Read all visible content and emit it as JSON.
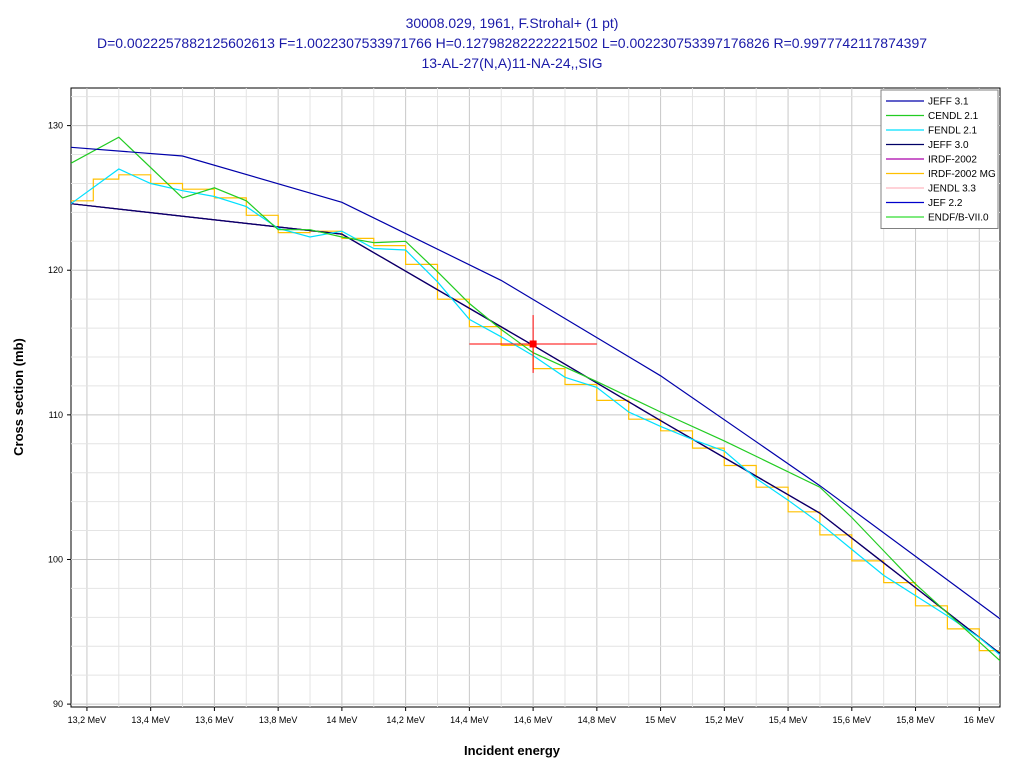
{
  "chart_data": {
    "type": "line",
    "title_lines": [
      "30008.029, 1961, F.Strohal+ (1 pt)",
      "D=0.0022257882125602613 F=1.0022307533971766 H=0.12798282222221502 L=0.002230753397176826 R=0.9977742117874397",
      "13-AL-27(N,A)11-NA-24,,SIG"
    ],
    "xlabel": "Incident energy",
    "ylabel": "Cross section (mb)",
    "xlim": [
      13.15,
      16.065
    ],
    "ylim": [
      89.8,
      132.6
    ],
    "x_ticks": [
      {
        "value": 13.2,
        "label": "13,2 MeV"
      },
      {
        "value": 13.4,
        "label": "13,4 MeV"
      },
      {
        "value": 13.6,
        "label": "13,6 MeV"
      },
      {
        "value": 13.8,
        "label": "13,8 MeV"
      },
      {
        "value": 14.0,
        "label": "14 MeV"
      },
      {
        "value": 14.2,
        "label": "14,2 MeV"
      },
      {
        "value": 14.4,
        "label": "14,4 MeV"
      },
      {
        "value": 14.6,
        "label": "14,6 MeV"
      },
      {
        "value": 14.8,
        "label": "14,8 MeV"
      },
      {
        "value": 15.0,
        "label": "15 MeV"
      },
      {
        "value": 15.2,
        "label": "15,2 MeV"
      },
      {
        "value": 15.4,
        "label": "15,4 MeV"
      },
      {
        "value": 15.6,
        "label": "15,6 MeV"
      },
      {
        "value": 15.8,
        "label": "15,8 MeV"
      },
      {
        "value": 16.0,
        "label": "16 MeV"
      }
    ],
    "y_ticks": [
      {
        "value": 90,
        "label": "90"
      },
      {
        "value": 100,
        "label": "100"
      },
      {
        "value": 110,
        "label": "110"
      },
      {
        "value": 120,
        "label": "120"
      },
      {
        "value": 130,
        "label": "130"
      }
    ],
    "grid": true,
    "legend_position": "top-right",
    "series": [
      {
        "name": "JEFF 3.1",
        "color": "#0000aa",
        "style": "line",
        "x": [
          13.15,
          13.5,
          14.0,
          14.5,
          15.0,
          15.5,
          16.065
        ],
        "y": [
          128.5,
          127.9,
          124.7,
          119.3,
          112.7,
          105.1,
          95.9
        ]
      },
      {
        "name": "CENDL 2.1",
        "color": "#22cc22",
        "style": "line",
        "x": [
          13.15,
          13.3,
          13.5,
          13.6,
          13.7,
          13.8,
          13.9,
          14.0,
          14.1,
          14.2,
          14.3,
          14.4,
          14.5,
          14.6,
          14.8,
          15.0,
          15.2,
          15.5,
          15.6,
          15.8,
          16.065
        ],
        "y": [
          127.4,
          129.2,
          125.0,
          125.7,
          124.8,
          122.8,
          122.8,
          122.3,
          121.9,
          122.0,
          119.9,
          117.7,
          115.9,
          114.3,
          112.3,
          110.2,
          108.2,
          105.0,
          102.9,
          98.3,
          93.0
        ]
      },
      {
        "name": "FENDL 2.1",
        "color": "#00e0ff",
        "style": "line",
        "x": [
          13.15,
          13.3,
          13.4,
          13.5,
          13.6,
          13.7,
          13.8,
          13.9,
          14.0,
          14.1,
          14.2,
          14.3,
          14.4,
          14.5,
          14.6,
          14.7,
          14.8,
          14.9,
          15.0,
          15.1,
          15.2,
          15.3,
          15.4,
          15.5,
          15.6,
          15.7,
          15.8,
          15.9,
          16.0,
          16.065
        ],
        "y": [
          124.6,
          127.0,
          126.0,
          125.5,
          125.1,
          124.4,
          122.9,
          122.3,
          122.7,
          121.5,
          121.4,
          119.2,
          116.6,
          115.4,
          114.1,
          112.6,
          111.9,
          110.2,
          109.2,
          108.3,
          107.5,
          105.6,
          104.1,
          102.5,
          100.7,
          98.9,
          97.5,
          96.1,
          94.6,
          93.4
        ]
      },
      {
        "name": "JEFF 3.0",
        "color": "#000066",
        "style": "line",
        "x": [
          13.15,
          14.0,
          14.6,
          15.0,
          15.5,
          16.065
        ],
        "y": [
          124.6,
          122.5,
          114.8,
          109.6,
          103.2,
          93.5
        ]
      },
      {
        "name": "IRDF-2002",
        "color": "#aa00aa",
        "style": "line",
        "x": [
          13.15,
          14.0,
          14.6,
          15.0,
          15.5,
          16.065
        ],
        "y": [
          124.6,
          122.5,
          114.8,
          109.6,
          103.2,
          93.5
        ]
      },
      {
        "name": "IRDF-2002 MG",
        "color": "#ffc000",
        "style": "step",
        "edges": [
          13.15,
          13.22,
          13.3,
          13.4,
          13.5,
          13.6,
          13.7,
          13.8,
          13.9,
          14.0,
          14.1,
          14.2,
          14.3,
          14.4,
          14.5,
          14.6,
          14.7,
          14.8,
          14.9,
          15.0,
          15.1,
          15.2,
          15.3,
          15.4,
          15.5,
          15.6,
          15.7,
          15.8,
          15.9,
          16.0,
          16.065
        ],
        "values": [
          124.8,
          126.3,
          126.6,
          126.0,
          125.6,
          125.0,
          123.8,
          122.6,
          122.7,
          122.2,
          121.7,
          120.4,
          118.0,
          116.1,
          114.8,
          113.2,
          112.1,
          111.0,
          109.7,
          108.9,
          107.7,
          106.5,
          105.0,
          103.3,
          101.7,
          99.9,
          98.4,
          96.8,
          95.2,
          93.7
        ]
      },
      {
        "name": "JENDL 3.3",
        "color": "#ffb6c1",
        "style": "line",
        "x": [
          13.15,
          14.0,
          14.6,
          15.0,
          15.5,
          16.065
        ],
        "y": [
          124.6,
          122.5,
          114.8,
          109.6,
          103.2,
          93.5
        ]
      },
      {
        "name": "JEF 2.2",
        "color": "#0000cc",
        "style": "line",
        "x": [
          13.15,
          14.0,
          14.6,
          15.0,
          15.5,
          16.065
        ],
        "y": [
          124.6,
          122.5,
          114.8,
          109.6,
          103.2,
          93.5
        ]
      },
      {
        "name": "ENDF/B-VII.0",
        "color": "#33dd33",
        "style": "line",
        "x": [
          13.15,
          14.0,
          14.6,
          15.0,
          15.5,
          16.065
        ],
        "y": [
          124.6,
          122.5,
          114.8,
          109.6,
          103.2,
          93.5
        ]
      }
    ],
    "measurements": [
      {
        "x": 14.6,
        "y": 114.9,
        "x_err": 0.2,
        "y_err": 2.0,
        "color": "#ff0000"
      }
    ]
  }
}
